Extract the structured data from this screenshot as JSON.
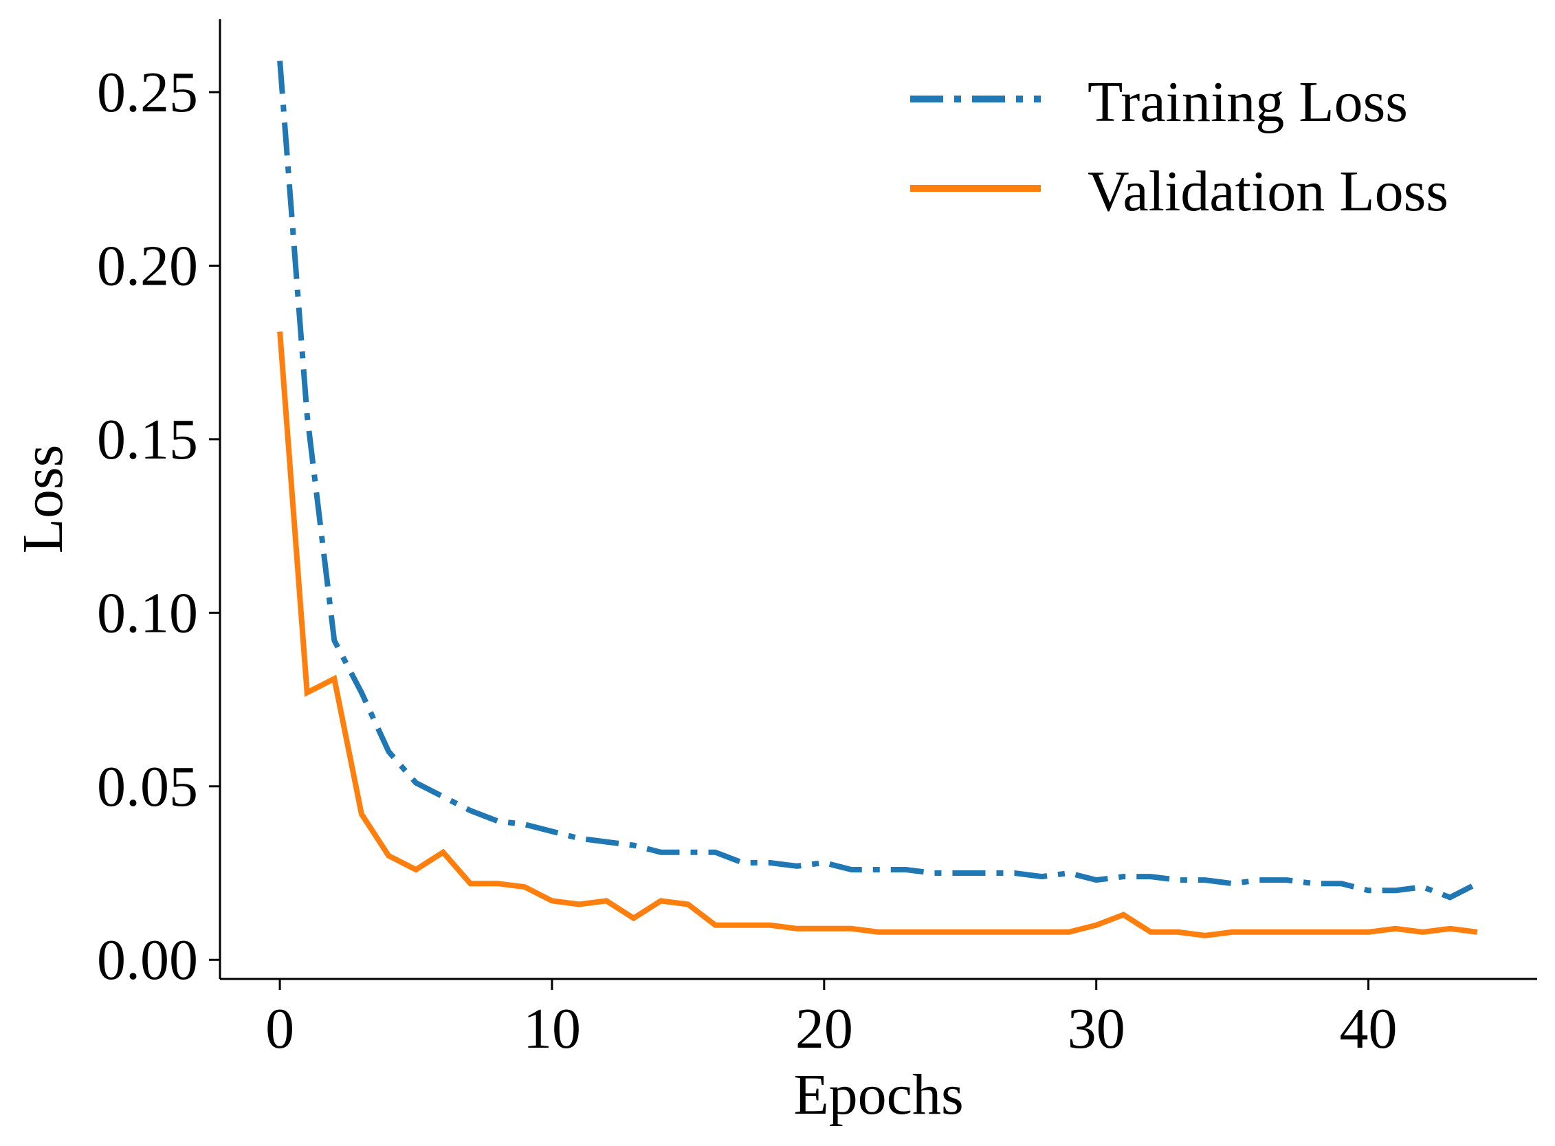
{
  "chart_data": {
    "type": "line",
    "title": "",
    "xlabel": "Epochs",
    "ylabel": "Loss",
    "xlim": [
      -2.2,
      46.2
    ],
    "ylim": [
      -0.0055,
      0.271
    ],
    "xticks": [
      0,
      10,
      20,
      30,
      40
    ],
    "xtick_labels": [
      "0",
      "10",
      "20",
      "30",
      "40"
    ],
    "yticks": [
      0.0,
      0.05,
      0.1,
      0.15,
      0.2,
      0.25
    ],
    "ytick_labels": [
      "0.00",
      "0.05",
      "0.10",
      "0.15",
      "0.20",
      "0.25"
    ],
    "grid": false,
    "legend_position": "top-right",
    "series": [
      {
        "name": "Training Loss",
        "color": "#1f77b4",
        "line_style": "dashdot",
        "x": [
          0,
          1,
          2,
          3,
          4,
          5,
          6,
          7,
          8,
          9,
          10,
          11,
          12,
          13,
          14,
          15,
          16,
          17,
          18,
          19,
          20,
          21,
          22,
          23,
          24,
          25,
          26,
          27,
          28,
          29,
          30,
          31,
          32,
          33,
          34,
          35,
          36,
          37,
          38,
          39,
          40,
          41,
          42,
          43,
          44
        ],
        "values": [
          0.259,
          0.157,
          0.092,
          0.077,
          0.06,
          0.051,
          0.047,
          0.043,
          0.04,
          0.039,
          0.037,
          0.035,
          0.034,
          0.033,
          0.031,
          0.031,
          0.031,
          0.028,
          0.028,
          0.027,
          0.028,
          0.026,
          0.026,
          0.026,
          0.025,
          0.025,
          0.025,
          0.025,
          0.024,
          0.025,
          0.023,
          0.024,
          0.024,
          0.023,
          0.023,
          0.022,
          0.023,
          0.023,
          0.022,
          0.022,
          0.02,
          0.02,
          0.021,
          0.018,
          0.022
        ]
      },
      {
        "name": "Validation Loss",
        "color": "#ff7f0e",
        "line_style": "solid",
        "x": [
          0,
          1,
          2,
          3,
          4,
          5,
          6,
          7,
          8,
          9,
          10,
          11,
          12,
          13,
          14,
          15,
          16,
          17,
          18,
          19,
          20,
          21,
          22,
          23,
          24,
          25,
          26,
          27,
          28,
          29,
          30,
          31,
          32,
          33,
          34,
          35,
          36,
          37,
          38,
          39,
          40,
          41,
          42,
          43,
          44
        ],
        "values": [
          0.181,
          0.077,
          0.081,
          0.042,
          0.03,
          0.026,
          0.031,
          0.022,
          0.022,
          0.021,
          0.017,
          0.016,
          0.017,
          0.012,
          0.017,
          0.016,
          0.01,
          0.01,
          0.01,
          0.009,
          0.009,
          0.009,
          0.008,
          0.008,
          0.008,
          0.008,
          0.008,
          0.008,
          0.008,
          0.008,
          0.01,
          0.013,
          0.008,
          0.008,
          0.007,
          0.008,
          0.008,
          0.008,
          0.008,
          0.008,
          0.008,
          0.009,
          0.008,
          0.009,
          0.008
        ]
      }
    ]
  }
}
